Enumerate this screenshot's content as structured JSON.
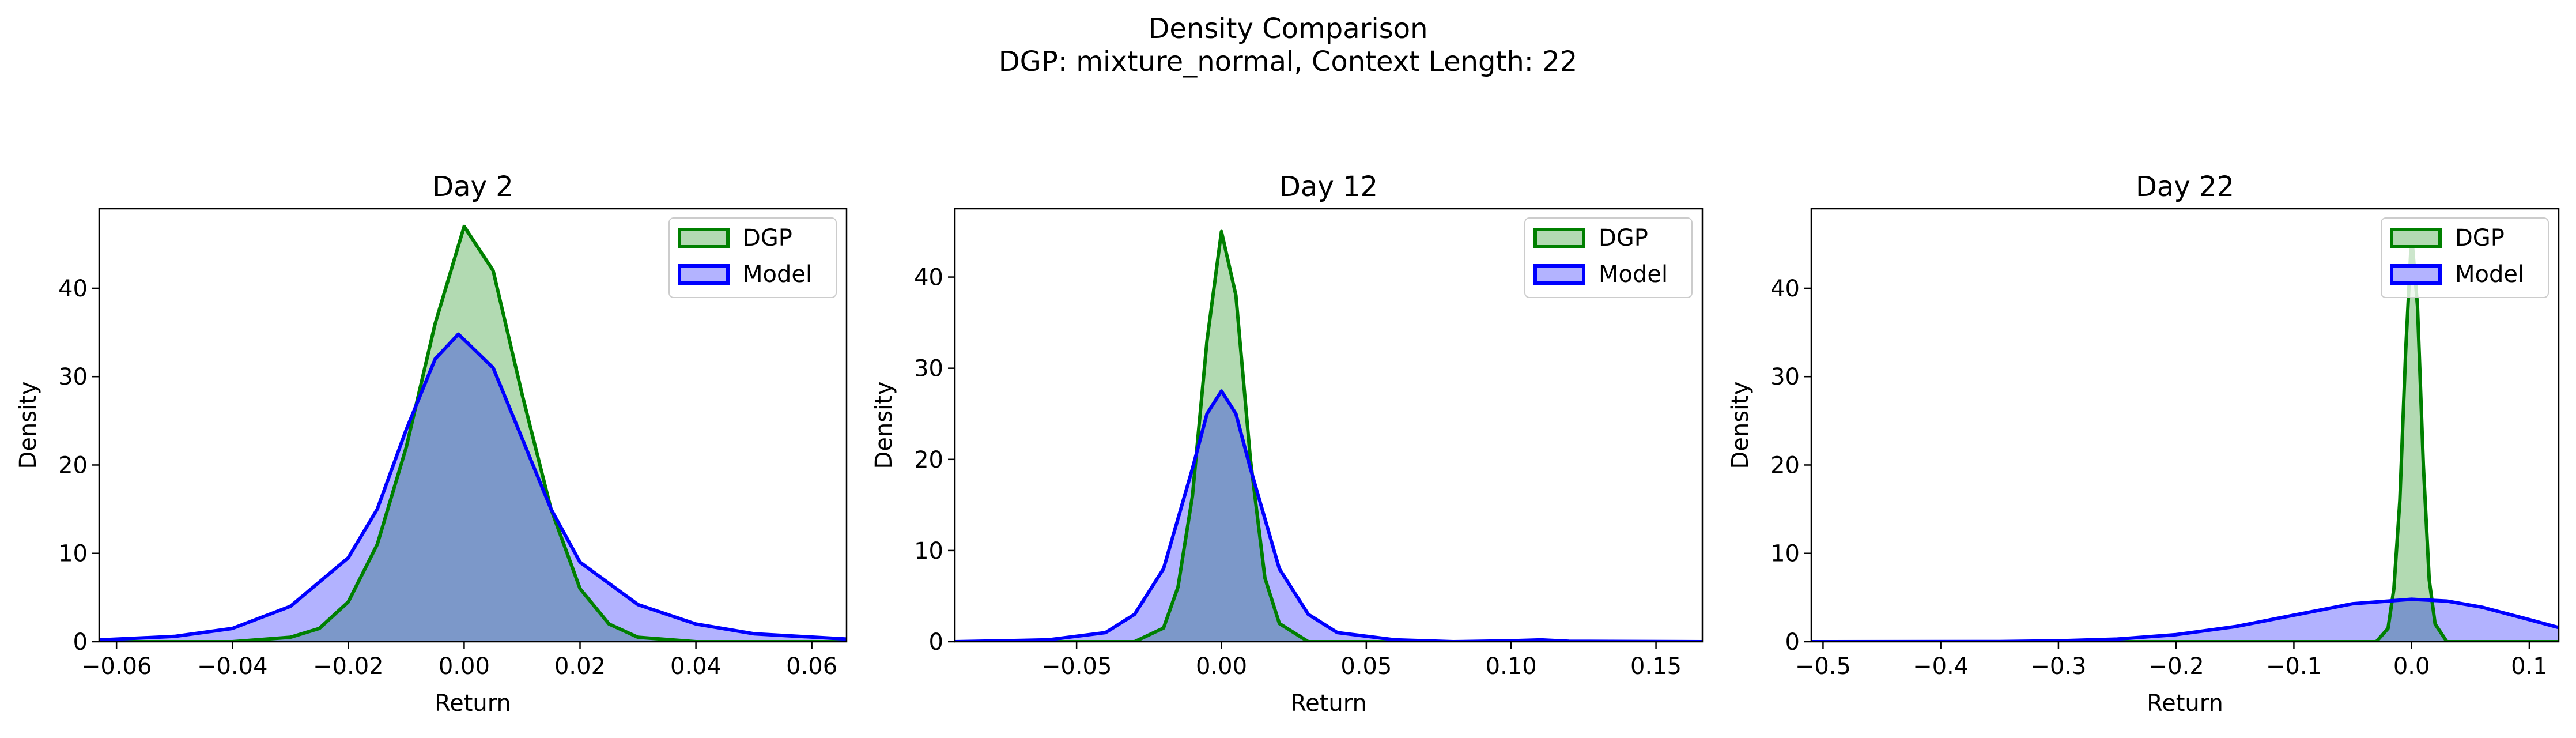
{
  "figure": {
    "title_line1": "Density Comparison",
    "title_line2": "DGP: mixture_normal, Context Length: 22"
  },
  "colors": {
    "dgp_line": "#008000",
    "dgp_fill": "#b2dab2",
    "model_line": "#0000ff",
    "model_fill": "#b3b3ff",
    "overlap": "#7f99c8"
  },
  "chart_data": [
    {
      "type": "area",
      "title": "Day 2",
      "xlabel": "Return",
      "ylabel": "Density",
      "xlim": [
        -0.063,
        0.066
      ],
      "ylim": [
        0,
        49
      ],
      "xticks": [
        -0.06,
        -0.04,
        -0.02,
        0.0,
        0.02,
        0.04,
        0.06
      ],
      "xtick_labels": [
        "−0.06",
        "−0.04",
        "−0.02",
        "0.00",
        "0.02",
        "0.04",
        "0.06"
      ],
      "yticks": [
        0,
        10,
        20,
        30,
        40
      ],
      "ytick_labels": [
        "0",
        "10",
        "20",
        "30",
        "40"
      ],
      "legend": "top-right",
      "series": [
        {
          "name": "DGP",
          "x": [
            -0.063,
            -0.04,
            -0.03,
            -0.025,
            -0.02,
            -0.015,
            -0.01,
            -0.005,
            0.0,
            0.005,
            0.01,
            0.015,
            0.02,
            0.025,
            0.03,
            0.04,
            0.066
          ],
          "values": [
            0,
            0,
            0.5,
            1.5,
            4.5,
            11,
            22,
            36,
            47,
            42,
            28,
            15,
            6,
            2,
            0.5,
            0,
            0
          ]
        },
        {
          "name": "Model",
          "x": [
            -0.063,
            -0.05,
            -0.04,
            -0.03,
            -0.02,
            -0.015,
            -0.01,
            -0.005,
            -0.001,
            0.005,
            0.01,
            0.015,
            0.02,
            0.03,
            0.04,
            0.05,
            0.066
          ],
          "values": [
            0.2,
            0.6,
            1.5,
            4,
            9.5,
            15,
            24,
            32,
            34.8,
            31,
            23,
            15,
            9,
            4.2,
            2,
            0.9,
            0.3
          ]
        }
      ]
    },
    {
      "type": "area",
      "title": "Day 12",
      "xlabel": "Return",
      "ylabel": "Density",
      "xlim": [
        -0.092,
        0.166
      ],
      "ylim": [
        0,
        47.5
      ],
      "xticks": [
        -0.05,
        0.0,
        0.05,
        0.1,
        0.15
      ],
      "xtick_labels": [
        "−0.05",
        "0.00",
        "0.05",
        "0.10",
        "0.15"
      ],
      "yticks": [
        0,
        10,
        20,
        30,
        40
      ],
      "ytick_labels": [
        "0",
        "10",
        "20",
        "30",
        "40"
      ],
      "legend": "top-right",
      "series": [
        {
          "name": "DGP",
          "x": [
            -0.092,
            -0.03,
            -0.02,
            -0.015,
            -0.01,
            -0.005,
            0.0,
            0.005,
            0.01,
            0.015,
            0.02,
            0.03,
            0.166
          ],
          "values": [
            0,
            0,
            1.5,
            6,
            16,
            33,
            45,
            38,
            20,
            7,
            2,
            0,
            0
          ]
        },
        {
          "name": "Model",
          "x": [
            -0.092,
            -0.06,
            -0.04,
            -0.03,
            -0.02,
            -0.01,
            -0.005,
            0.0,
            0.005,
            0.01,
            0.02,
            0.03,
            0.04,
            0.06,
            0.08,
            0.1,
            0.11,
            0.12,
            0.166
          ],
          "values": [
            0,
            0.2,
            1,
            3,
            8,
            19,
            25,
            27.5,
            25,
            19,
            8,
            3,
            1,
            0.2,
            0,
            0.1,
            0.2,
            0.05,
            0
          ]
        }
      ]
    },
    {
      "type": "area",
      "title": "Day 22",
      "xlabel": "Return",
      "ylabel": "Density",
      "xlim": [
        -0.51,
        0.125
      ],
      "ylim": [
        0,
        49
      ],
      "xticks": [
        -0.5,
        -0.4,
        -0.3,
        -0.2,
        -0.1,
        0.0,
        0.1
      ],
      "xtick_labels": [
        "−0.5",
        "−0.4",
        "−0.3",
        "−0.2",
        "−0.1",
        "0.0",
        "0.1"
      ],
      "yticks": [
        0,
        10,
        20,
        30,
        40
      ],
      "ytick_labels": [
        "0",
        "10",
        "20",
        "30",
        "40"
      ],
      "legend": "top-right",
      "series": [
        {
          "name": "DGP",
          "x": [
            -0.51,
            -0.03,
            -0.02,
            -0.015,
            -0.01,
            -0.005,
            0.0,
            0.005,
            0.01,
            0.015,
            0.02,
            0.03,
            0.125
          ],
          "values": [
            0,
            0,
            1.5,
            6,
            16,
            33,
            46,
            38,
            20,
            7,
            2,
            0,
            0
          ]
        },
        {
          "name": "Model",
          "x": [
            -0.51,
            -0.35,
            -0.3,
            -0.25,
            -0.2,
            -0.15,
            -0.1,
            -0.05,
            0.0,
            0.03,
            0.06,
            0.1,
            0.125
          ],
          "values": [
            0,
            0.02,
            0.1,
            0.3,
            0.8,
            1.7,
            3,
            4.3,
            4.8,
            4.6,
            3.9,
            2.5,
            1.6
          ]
        }
      ]
    }
  ]
}
